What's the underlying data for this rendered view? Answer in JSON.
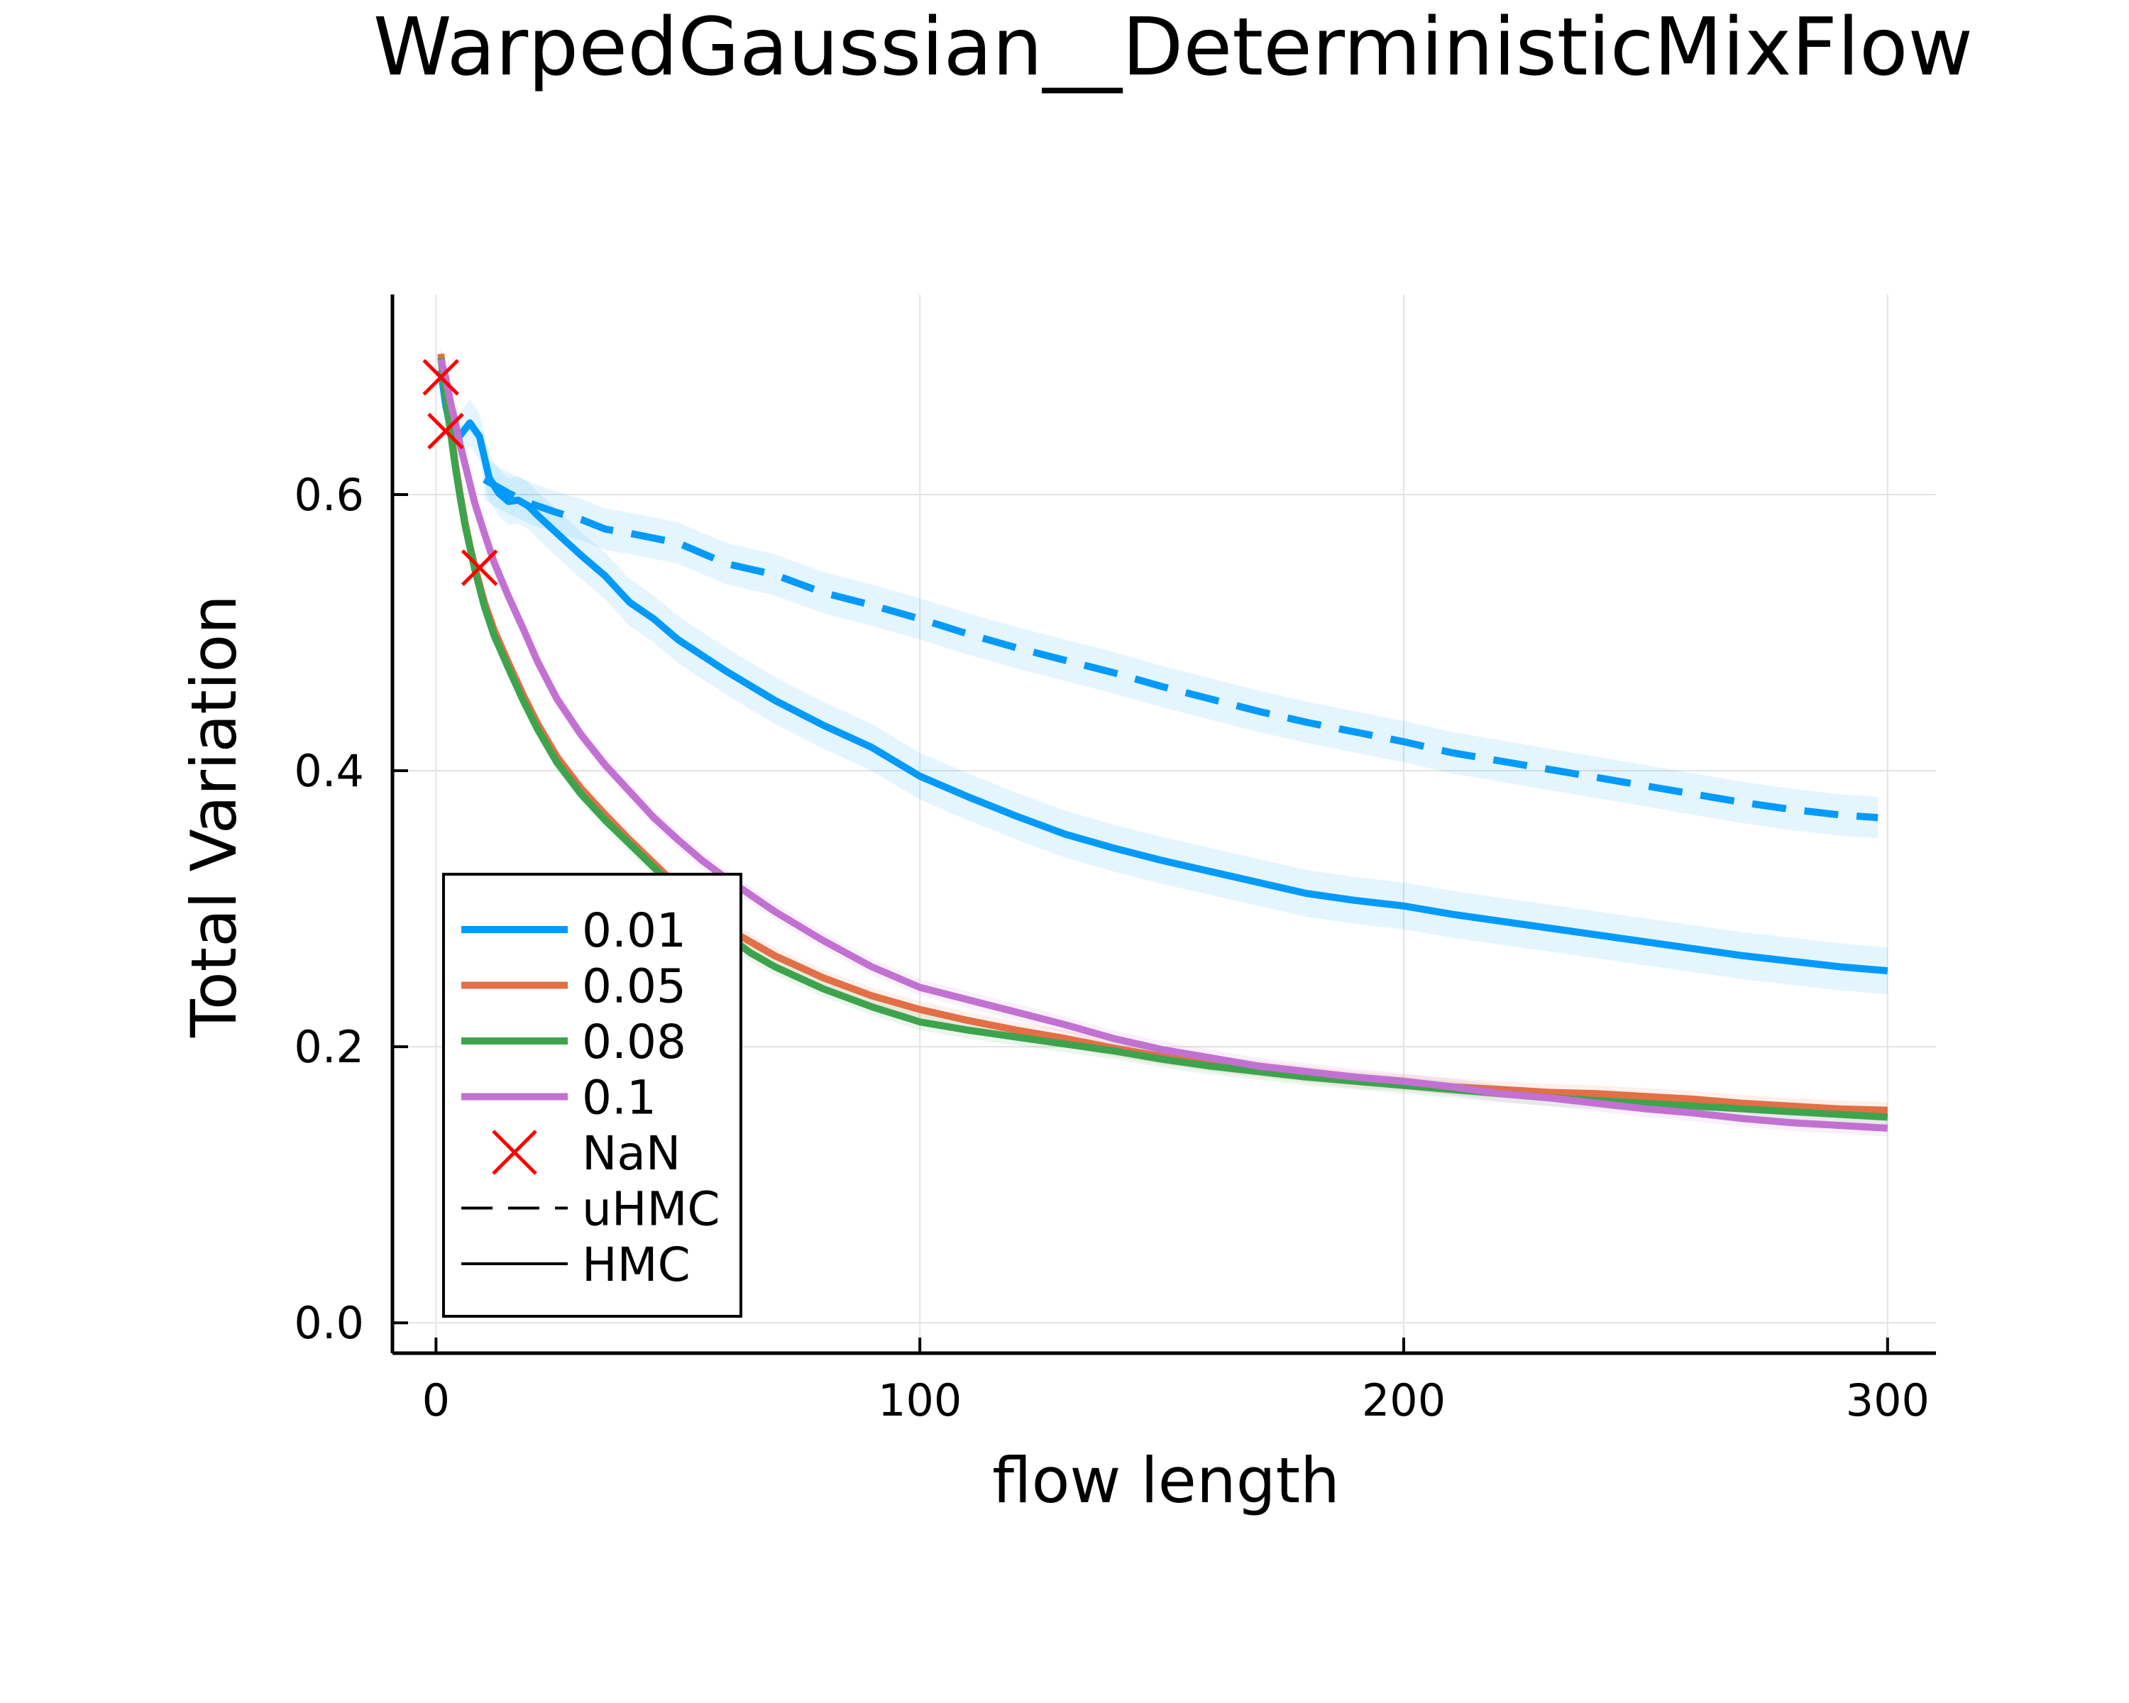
{
  "chart_data": {
    "type": "line",
    "title": "WarpedGaussian__DeterministicMixFlow",
    "xlabel": "flow length",
    "ylabel": "Total Variation",
    "xlim": [
      -9,
      310
    ],
    "ylim": [
      -0.022,
      0.745
    ],
    "xticks": [
      0,
      100,
      200,
      300
    ],
    "xtick_labels": [
      "0",
      "100",
      "200",
      "300"
    ],
    "yticks": [
      0.0,
      0.2,
      0.4,
      0.6
    ],
    "ytick_labels": [
      "0.0",
      "0.2",
      "0.4",
      "0.6"
    ],
    "grid": true,
    "legend_position": "bottom-left",
    "series": [
      {
        "name": "0.01",
        "method": "HMC",
        "color": "#009AFA",
        "points": [
          [
            1,
            0.69
          ],
          [
            2,
            0.665
          ],
          [
            3,
            0.648
          ],
          [
            5,
            0.643
          ],
          [
            7,
            0.652
          ],
          [
            9,
            0.642
          ],
          [
            11,
            0.612
          ],
          [
            13,
            0.601
          ],
          [
            15,
            0.595
          ],
          [
            17,
            0.596
          ],
          [
            19,
            0.592
          ],
          [
            21,
            0.585
          ],
          [
            25,
            0.572
          ],
          [
            30,
            0.556
          ],
          [
            35,
            0.541
          ],
          [
            40,
            0.522
          ],
          [
            45,
            0.51
          ],
          [
            50,
            0.495
          ],
          [
            60,
            0.472
          ],
          [
            70,
            0.451
          ],
          [
            80,
            0.433
          ],
          [
            90,
            0.417
          ],
          [
            100,
            0.396
          ],
          [
            110,
            0.381
          ],
          [
            120,
            0.367
          ],
          [
            130,
            0.354
          ],
          [
            140,
            0.344
          ],
          [
            150,
            0.335
          ],
          [
            160,
            0.327
          ],
          [
            170,
            0.319
          ],
          [
            180,
            0.311
          ],
          [
            190,
            0.306
          ],
          [
            200,
            0.302
          ],
          [
            210,
            0.296
          ],
          [
            220,
            0.291
          ],
          [
            230,
            0.286
          ],
          [
            240,
            0.281
          ],
          [
            250,
            0.276
          ],
          [
            260,
            0.271
          ],
          [
            270,
            0.266
          ],
          [
            280,
            0.262
          ],
          [
            290,
            0.258
          ],
          [
            300,
            0.255
          ]
        ],
        "band": 0.017
      },
      {
        "name": "0.01",
        "method": "uHMC",
        "color": "#009AFA",
        "points": [
          [
            10,
            0.611
          ],
          [
            15,
            0.601
          ],
          [
            20,
            0.593
          ],
          [
            25,
            0.587
          ],
          [
            30,
            0.582
          ],
          [
            35,
            0.575
          ],
          [
            40,
            0.572
          ],
          [
            50,
            0.565
          ],
          [
            60,
            0.55
          ],
          [
            70,
            0.542
          ],
          [
            80,
            0.529
          ],
          [
            90,
            0.52
          ],
          [
            100,
            0.51
          ],
          [
            110,
            0.499
          ],
          [
            120,
            0.489
          ],
          [
            130,
            0.48
          ],
          [
            140,
            0.471
          ],
          [
            150,
            0.461
          ],
          [
            160,
            0.452
          ],
          [
            170,
            0.443
          ],
          [
            180,
            0.435
          ],
          [
            190,
            0.428
          ],
          [
            200,
            0.421
          ],
          [
            210,
            0.413
          ],
          [
            220,
            0.407
          ],
          [
            230,
            0.401
          ],
          [
            240,
            0.395
          ],
          [
            250,
            0.389
          ],
          [
            260,
            0.383
          ],
          [
            270,
            0.377
          ],
          [
            280,
            0.372
          ],
          [
            290,
            0.368
          ],
          [
            298,
            0.366
          ]
        ],
        "band": 0.015
      },
      {
        "name": "0.05",
        "method": "HMC",
        "color": "#E26F46",
        "points": [
          [
            1,
            0.702
          ],
          [
            2,
            0.675
          ],
          [
            3,
            0.648
          ],
          [
            4,
            0.622
          ],
          [
            5,
            0.6
          ],
          [
            6,
            0.58
          ],
          [
            7,
            0.563
          ],
          [
            8,
            0.548
          ],
          [
            10,
            0.522
          ],
          [
            12,
            0.502
          ],
          [
            15,
            0.478
          ],
          [
            18,
            0.455
          ],
          [
            21,
            0.434
          ],
          [
            25,
            0.41
          ],
          [
            30,
            0.387
          ],
          [
            35,
            0.368
          ],
          [
            40,
            0.35
          ],
          [
            45,
            0.333
          ],
          [
            50,
            0.316
          ],
          [
            55,
            0.3
          ],
          [
            60,
            0.286
          ],
          [
            65,
            0.276
          ],
          [
            70,
            0.266
          ],
          [
            80,
            0.25
          ],
          [
            90,
            0.237
          ],
          [
            100,
            0.227
          ],
          [
            110,
            0.219
          ],
          [
            120,
            0.212
          ],
          [
            130,
            0.206
          ],
          [
            140,
            0.199
          ],
          [
            150,
            0.193
          ],
          [
            160,
            0.188
          ],
          [
            170,
            0.184
          ],
          [
            180,
            0.18
          ],
          [
            190,
            0.176
          ],
          [
            200,
            0.174
          ],
          [
            210,
            0.171
          ],
          [
            220,
            0.169
          ],
          [
            230,
            0.167
          ],
          [
            240,
            0.166
          ],
          [
            250,
            0.164
          ],
          [
            260,
            0.162
          ],
          [
            270,
            0.159
          ],
          [
            280,
            0.157
          ],
          [
            290,
            0.155
          ],
          [
            300,
            0.154
          ]
        ],
        "band": 0.006
      },
      {
        "name": "0.08",
        "method": "HMC",
        "color": "#3DA44D",
        "points": [
          [
            1,
            0.699
          ],
          [
            2,
            0.672
          ],
          [
            3,
            0.645
          ],
          [
            4,
            0.62
          ],
          [
            5,
            0.598
          ],
          [
            6,
            0.578
          ],
          [
            7,
            0.562
          ],
          [
            8,
            0.546
          ],
          [
            10,
            0.519
          ],
          [
            12,
            0.498
          ],
          [
            15,
            0.474
          ],
          [
            18,
            0.451
          ],
          [
            21,
            0.43
          ],
          [
            25,
            0.406
          ],
          [
            30,
            0.383
          ],
          [
            35,
            0.364
          ],
          [
            40,
            0.347
          ],
          [
            45,
            0.33
          ],
          [
            50,
            0.313
          ],
          [
            55,
            0.296
          ],
          [
            60,
            0.281
          ],
          [
            65,
            0.268
          ],
          [
            70,
            0.258
          ],
          [
            80,
            0.242
          ],
          [
            90,
            0.229
          ],
          [
            100,
            0.218
          ],
          [
            110,
            0.212
          ],
          [
            120,
            0.207
          ],
          [
            130,
            0.202
          ],
          [
            140,
            0.197
          ],
          [
            150,
            0.191
          ],
          [
            160,
            0.186
          ],
          [
            170,
            0.182
          ],
          [
            180,
            0.178
          ],
          [
            190,
            0.175
          ],
          [
            200,
            0.172
          ],
          [
            210,
            0.169
          ],
          [
            220,
            0.166
          ],
          [
            230,
            0.163
          ],
          [
            240,
            0.161
          ],
          [
            250,
            0.159
          ],
          [
            260,
            0.157
          ],
          [
            270,
            0.155
          ],
          [
            280,
            0.153
          ],
          [
            290,
            0.151
          ],
          [
            300,
            0.149
          ]
        ],
        "band": 0.006
      },
      {
        "name": "0.1",
        "method": "HMC",
        "color": "#C271D2",
        "points": [
          [
            1,
            0.698
          ],
          [
            2,
            0.685
          ],
          [
            3,
            0.667
          ],
          [
            4,
            0.652
          ],
          [
            5,
            0.636
          ],
          [
            6,
            0.622
          ],
          [
            7,
            0.608
          ],
          [
            8,
            0.594
          ],
          [
            10,
            0.572
          ],
          [
            12,
            0.551
          ],
          [
            15,
            0.526
          ],
          [
            18,
            0.503
          ],
          [
            21,
            0.479
          ],
          [
            25,
            0.452
          ],
          [
            30,
            0.426
          ],
          [
            35,
            0.404
          ],
          [
            40,
            0.385
          ],
          [
            45,
            0.366
          ],
          [
            50,
            0.35
          ],
          [
            55,
            0.335
          ],
          [
            60,
            0.322
          ],
          [
            65,
            0.31
          ],
          [
            70,
            0.298
          ],
          [
            80,
            0.277
          ],
          [
            90,
            0.258
          ],
          [
            100,
            0.243
          ],
          [
            110,
            0.234
          ],
          [
            120,
            0.225
          ],
          [
            130,
            0.216
          ],
          [
            140,
            0.206
          ],
          [
            150,
            0.198
          ],
          [
            160,
            0.192
          ],
          [
            170,
            0.186
          ],
          [
            180,
            0.182
          ],
          [
            190,
            0.178
          ],
          [
            200,
            0.175
          ],
          [
            210,
            0.171
          ],
          [
            220,
            0.166
          ],
          [
            230,
            0.163
          ],
          [
            240,
            0.159
          ],
          [
            250,
            0.155
          ],
          [
            260,
            0.152
          ],
          [
            270,
            0.148
          ],
          [
            280,
            0.145
          ],
          [
            290,
            0.143
          ],
          [
            300,
            0.141
          ]
        ],
        "band": 0.006
      }
    ],
    "nan_markers": {
      "name": "NaN",
      "color": "#FF0000",
      "points": [
        [
          1,
          0.685
        ],
        [
          2,
          0.646
        ],
        [
          9,
          0.547
        ]
      ]
    },
    "legend": [
      {
        "label": "0.01",
        "kind": "line",
        "color": "#009AFA"
      },
      {
        "label": "0.05",
        "kind": "line",
        "color": "#E26F46"
      },
      {
        "label": "0.08",
        "kind": "line",
        "color": "#3DA44D"
      },
      {
        "label": "0.1",
        "kind": "line",
        "color": "#C271D2"
      },
      {
        "label": "NaN",
        "kind": "cross",
        "color": "#FF0000"
      },
      {
        "label": "uHMC",
        "kind": "dashed",
        "color": "#000000"
      },
      {
        "label": "HMC",
        "kind": "solid",
        "color": "#000000"
      }
    ]
  }
}
